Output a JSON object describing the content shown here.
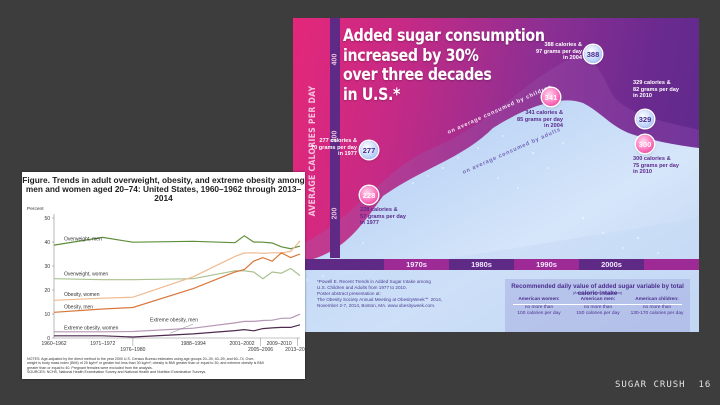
{
  "slide": {
    "footer_title": "SUGAR CRUSH",
    "page_number": "16"
  },
  "infographic": {
    "headline_lines": [
      "Added sugar consumption",
      "increased by 30%",
      "over three decades",
      "in U.S.*"
    ],
    "y_axis_title": "AVERAGE CALORIES PER DAY",
    "y_ticks": [
      "400",
      "300",
      "200"
    ],
    "decades": [
      "1970s",
      "1980s",
      "1990s",
      "2000s"
    ],
    "curve_labels": {
      "children": "on average consumed by children",
      "adults": "on average consumed by adults"
    },
    "colors": {
      "magenta": "#e4277a",
      "purple": "#5e2a86",
      "light_blue": "#cfe0f5",
      "children_bubble": "#8fb0ef",
      "adult_bubble": "#e42c8e"
    },
    "points": [
      {
        "group": "children",
        "value": "277",
        "lines": [
          "277 calories &",
          "70 grams per day",
          "in 1977"
        ]
      },
      {
        "group": "adults",
        "value": "228",
        "lines": [
          "228 calories &",
          "57 grams per day",
          "in 1977"
        ]
      },
      {
        "group": "children",
        "value": "388",
        "lines": [
          "388 calories &",
          "97 grams per day",
          "in 2004"
        ]
      },
      {
        "group": "adults",
        "value": "341",
        "lines": [
          "341 calories &",
          "85 grams per day",
          "in 2004"
        ]
      },
      {
        "group": "children",
        "value": "329",
        "lines": [
          "329 calories &",
          "82 grams per day",
          "in 2010"
        ]
      },
      {
        "group": "adults",
        "value": "300",
        "lines": [
          "300 calories &",
          "75 grams per day",
          "in 2010"
        ]
      }
    ],
    "footnote_lines": [
      "*Powell E. Recent Trends in Added Sugar Intake among",
      "U.S. Children and Adults from 1977 to 2010.",
      "Poster abstract presentation at:",
      "The Obesity Society Annual Meeting at ObesityWeek℠ 2014,",
      "November 2-7, 2014, Boston, MA.  www.obesityweek.com."
    ],
    "recommendation": {
      "title": "Recommended daily value of added sugar variable by total caloric intake",
      "source": "(American Heart Association)",
      "columns": [
        {
          "header": "American women:",
          "line1": "no more than",
          "line2": "100 calories per day"
        },
        {
          "header": "American men:",
          "line1": "no more than",
          "line2": "150 calories per day"
        },
        {
          "header": "American children:",
          "line1": "no more than",
          "line2": "130-170 calories per day"
        }
      ]
    }
  },
  "chart_data": {
    "type": "line",
    "title": "Figure. Trends in adult overweight, obesity, and extreme obesity among men and women aged 20–74: United States, 1960–1962 through 2013–2014",
    "ylabel": "Percent",
    "xlabel": "",
    "ylim": [
      0,
      50
    ],
    "y_ticks": [
      "0",
      "10",
      "20",
      "30",
      "40",
      "50"
    ],
    "x_tick_labels_upper": [
      "1960–1962",
      "1971–1972",
      "1988–1994",
      "2001–2002",
      "2009–2010"
    ],
    "x_tick_labels_lower": [
      "1976–1980",
      "2005–2006",
      "2013–2014"
    ],
    "x": [
      1961,
      1971.5,
      1978,
      1991,
      2000,
      2002,
      2004,
      2006,
      2008,
      2010,
      2012,
      2014
    ],
    "series": [
      {
        "name": "Overweight, men",
        "color": "#5e8f3a",
        "values": [
          38.7,
          41.9,
          39.9,
          40.3,
          39.7,
          42.6,
          40.0,
          39.9,
          39.6,
          38.0,
          37.2,
          38.3
        ]
      },
      {
        "name": "Overweight, women",
        "color": "#a9c18f",
        "values": [
          24.7,
          24.3,
          24.3,
          24.7,
          28.0,
          28.0,
          27.5,
          24.7,
          27.5,
          27.0,
          29.0,
          26.0
        ]
      },
      {
        "name": "Obesity, women",
        "color": "#f0b98f",
        "values": [
          15.7,
          16.6,
          17.0,
          25.5,
          34.0,
          35.4,
          35.5,
          35.3,
          35.5,
          35.5,
          36.1,
          40.4
        ]
      },
      {
        "name": "Obesity, men",
        "color": "#d8773a",
        "values": [
          10.7,
          12.1,
          12.7,
          20.6,
          27.5,
          28.5,
          32.0,
          33.5,
          32.0,
          35.5,
          33.5,
          35.0
        ]
      },
      {
        "name": "Extreme obesity, women",
        "color": "#b697b5",
        "values": [
          2.6,
          2.6,
          2.7,
          4.1,
          6.3,
          6.9,
          6.9,
          7.3,
          7.4,
          8.2,
          8.3,
          9.9
        ]
      },
      {
        "name": "Extreme obesity, men",
        "color": "#4e2a4e",
        "values": [
          0.9,
          0.9,
          0.4,
          1.7,
          3.1,
          3.5,
          3.0,
          3.9,
          4.2,
          4.4,
          4.4,
          5.5
        ]
      }
    ],
    "series_labels": [
      "Overweight, men",
      "Overweight, women",
      "Obesity, women",
      "Obesity, men",
      "Extreme obesity, women",
      "Extreme obesity, men"
    ],
    "notes_lines": [
      "NOTES: Age-adjusted by the direct method to the year 2000 U.S. Census Bureau estimates using age groups 20–39, 40–59, and 60–74. Over-",
      "weight is body mass index (BMI) of 25 kg/m² or greater but less than 30 kg/m²; obesity is BMI greater than or equal to 30; and extreme obesity is BMI",
      "greater than or equal to 40. Pregnant females were excluded from the analysis.",
      "SOURCES: NCHS, National Health Examination Survey and National Health and Nutrition Examination Surveys."
    ]
  }
}
